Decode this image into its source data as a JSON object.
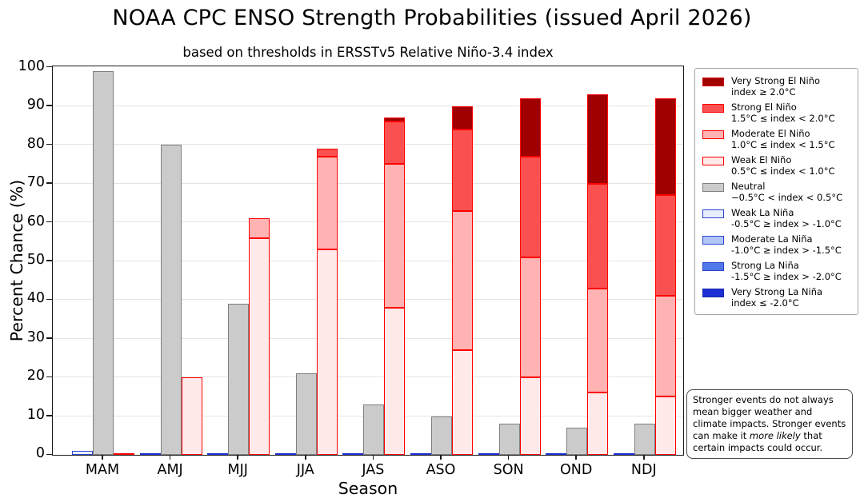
{
  "title": "NOAA CPC ENSO Strength Probabilities (issued April 2026)",
  "subtitle": "based on thresholds in ERSSTv5 Relative Niño-3.4 index",
  "axes": {
    "xlabel": "Season",
    "ylabel": "Percent Chance (%)",
    "yticks": [
      0,
      10,
      20,
      30,
      40,
      50,
      60,
      70,
      80,
      90,
      100
    ],
    "ylim": [
      0,
      100
    ],
    "grid": true
  },
  "chart_data": {
    "type": "bar",
    "layout": "grouped-stacked",
    "title": "NOAA CPC ENSO Strength Probabilities (issued April 2026)",
    "subtitle": "based on thresholds in ERSSTv5 Relative Niño-3.4 index",
    "xlabel": "Season",
    "ylabel": "Percent Chance (%)",
    "ylim": [
      0,
      100
    ],
    "grid": true,
    "legend_position": "outside-right",
    "categories": [
      "MAM",
      "AMJ",
      "MJJ",
      "JJA",
      "JAS",
      "ASO",
      "SON",
      "OND",
      "NDJ"
    ],
    "groups": [
      {
        "key": "la_nina",
        "name": "La Niña",
        "stack": [
          "weak_la_nina",
          "moderate_la_nina",
          "strong_la_nina",
          "very_strong_la_nina"
        ],
        "zero_line_color": "#1c2fd4"
      },
      {
        "key": "neutral",
        "name": "Neutral",
        "stack": [
          "neutral"
        ],
        "zero_line_color": "#7f7f7f"
      },
      {
        "key": "el_nino",
        "name": "El Niño",
        "stack": [
          "weak_el_nino",
          "moderate_el_nino",
          "strong_el_nino",
          "very_strong_el_nino"
        ],
        "zero_line_color": "#ff0000"
      }
    ],
    "series": {
      "weak_la_nina": {
        "name": "Weak La Niña",
        "values": [
          1,
          0,
          0,
          0,
          0,
          0,
          0,
          0,
          0
        ],
        "fill": "#e6edfb",
        "border": "#2d44d4"
      },
      "moderate_la_nina": {
        "name": "Moderate La Niña",
        "values": [
          0,
          0,
          0,
          0,
          0,
          0,
          0,
          0,
          0
        ],
        "fill": "#b1c6f4",
        "border": "#2d44d4"
      },
      "strong_la_nina": {
        "name": "Strong La Niña",
        "values": [
          0,
          0,
          0,
          0,
          0,
          0,
          0,
          0,
          0
        ],
        "fill": "#5078e8",
        "border": "#2d44d4"
      },
      "very_strong_la_nina": {
        "name": "Very Strong La Niña",
        "values": [
          0,
          0,
          0,
          0,
          0,
          0,
          0,
          0,
          0
        ],
        "fill": "#1c2fd4",
        "border": "#1626a8"
      },
      "neutral": {
        "name": "Neutral",
        "values": [
          99,
          80,
          39,
          21,
          13,
          10,
          8,
          7,
          8
        ],
        "fill": "#cbcbcb",
        "border": "#7f7f7f"
      },
      "weak_el_nino": {
        "name": "Weak El Niño",
        "values": [
          0,
          20,
          56,
          53,
          38,
          27,
          20,
          16,
          15
        ],
        "fill": "#ffe9e9",
        "border": "#ff0000"
      },
      "moderate_el_nino": {
        "name": "Moderate El Niño",
        "values": [
          0,
          0,
          5,
          24,
          37,
          36,
          31,
          27,
          26
        ],
        "fill": "#ffb3b3",
        "border": "#ff0000"
      },
      "strong_el_nino": {
        "name": "Strong El Niño",
        "values": [
          0,
          0,
          0,
          2,
          11,
          21,
          26,
          27,
          26
        ],
        "fill": "#fa5050",
        "border": "#ff0000"
      },
      "very_strong_el_nino": {
        "name": "Very Strong El Niño",
        "values": [
          0,
          0,
          0,
          0,
          1,
          6,
          15,
          23,
          25
        ],
        "fill": "#a00000",
        "border": "#ff0000"
      }
    }
  },
  "legend": {
    "items": [
      {
        "label": "Very Strong El Niño",
        "sublabel": "index ≥ 2.0°C",
        "fill": "#a00000",
        "border": "#cc0000"
      },
      {
        "label": "Strong El Niño",
        "sublabel": "1.5°C ≤ index < 2.0°C",
        "fill": "#fa5050",
        "border": "#ff0000"
      },
      {
        "label": "Moderate El Niño",
        "sublabel": "1.0°C ≤ index < 1.5°C",
        "fill": "#ffb3b3",
        "border": "#ff0000"
      },
      {
        "label": "Weak El Niño",
        "sublabel": "0.5°C ≤ index < 1.0°C",
        "fill": "#ffe9e9",
        "border": "#ff0000"
      },
      {
        "label": "Neutral",
        "sublabel": "−0.5°C < index < 0.5°C",
        "fill": "#cbcbcb",
        "border": "#7f7f7f"
      },
      {
        "label": "Weak La Niña",
        "sublabel": "-0.5°C ≥ index > -1.0°C",
        "fill": "#e6edfb",
        "border": "#2d44d4"
      },
      {
        "label": "Moderate La Niña",
        "sublabel": "-1.0°C ≥ index > -1.5°C",
        "fill": "#b1c6f4",
        "border": "#2d44d4"
      },
      {
        "label": "Strong La Niña",
        "sublabel": "-1.5°C ≥ index > -2.0°C",
        "fill": "#5078e8",
        "border": "#2d44d4"
      },
      {
        "label": "Very Strong La Niña",
        "sublabel": "index ≤ -2.0°C",
        "fill": "#1c2fd4",
        "border": "#1626a8"
      }
    ]
  },
  "note": {
    "text_before": "Stronger events do not always mean bigger weather and climate impacts. Stronger events can make it ",
    "text_italic": "more likely",
    "text_after": " that certain impacts could occur."
  }
}
